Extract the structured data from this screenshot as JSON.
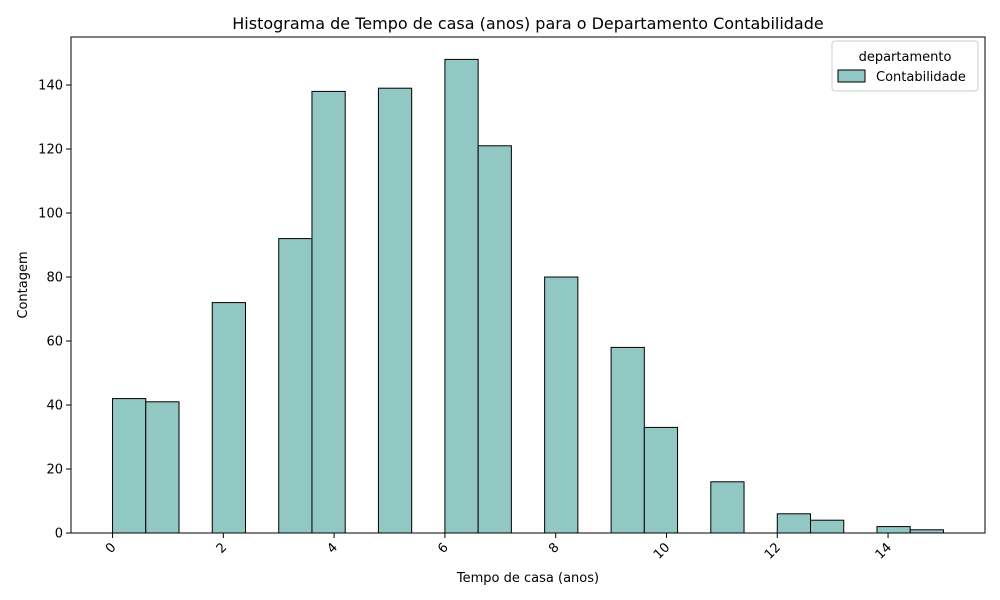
{
  "chart_data": {
    "type": "bar",
    "title": "Histograma de Tempo de casa (anos) para o Departamento Contabilidade",
    "xlabel": "Tempo de casa (anos)",
    "ylabel": "Contagem",
    "xlim": [
      -0.75,
      15.75
    ],
    "ylim": [
      0,
      155
    ],
    "x_ticks": [
      0,
      2,
      4,
      6,
      8,
      10,
      12,
      14
    ],
    "x_tick_labels": [
      "0",
      "2",
      "4",
      "6",
      "8",
      "10",
      "12",
      "14"
    ],
    "y_ticks": [
      0,
      20,
      40,
      60,
      80,
      100,
      120,
      140
    ],
    "y_tick_labels": [
      "0",
      "20",
      "40",
      "60",
      "80",
      "100",
      "120",
      "140"
    ],
    "bins": [
      {
        "start": 0.0,
        "end": 0.6,
        "count": 42
      },
      {
        "start": 0.6,
        "end": 1.2,
        "count": 41
      },
      {
        "start": 1.8,
        "end": 2.4,
        "count": 72
      },
      {
        "start": 3.0,
        "end": 3.6,
        "count": 92
      },
      {
        "start": 3.6,
        "end": 4.2,
        "count": 138
      },
      {
        "start": 4.8,
        "end": 5.4,
        "count": 139
      },
      {
        "start": 6.0,
        "end": 6.6,
        "count": 148
      },
      {
        "start": 6.6,
        "end": 7.2,
        "count": 121
      },
      {
        "start": 7.8,
        "end": 8.4,
        "count": 80
      },
      {
        "start": 9.0,
        "end": 9.6,
        "count": 58
      },
      {
        "start": 9.6,
        "end": 10.2,
        "count": 33
      },
      {
        "start": 10.8,
        "end": 11.4,
        "count": 16
      },
      {
        "start": 12.0,
        "end": 12.6,
        "count": 6
      },
      {
        "start": 12.6,
        "end": 13.2,
        "count": 4
      },
      {
        "start": 13.8,
        "end": 14.4,
        "count": 2
      },
      {
        "start": 14.4,
        "end": 15.0,
        "count": 1
      }
    ],
    "series": [
      {
        "name": "Contabilidade",
        "color": "#91c8c4"
      }
    ],
    "legend": {
      "title": "departamento",
      "placement": "top-right"
    },
    "grid": false,
    "x_tick_rotation": 45
  }
}
